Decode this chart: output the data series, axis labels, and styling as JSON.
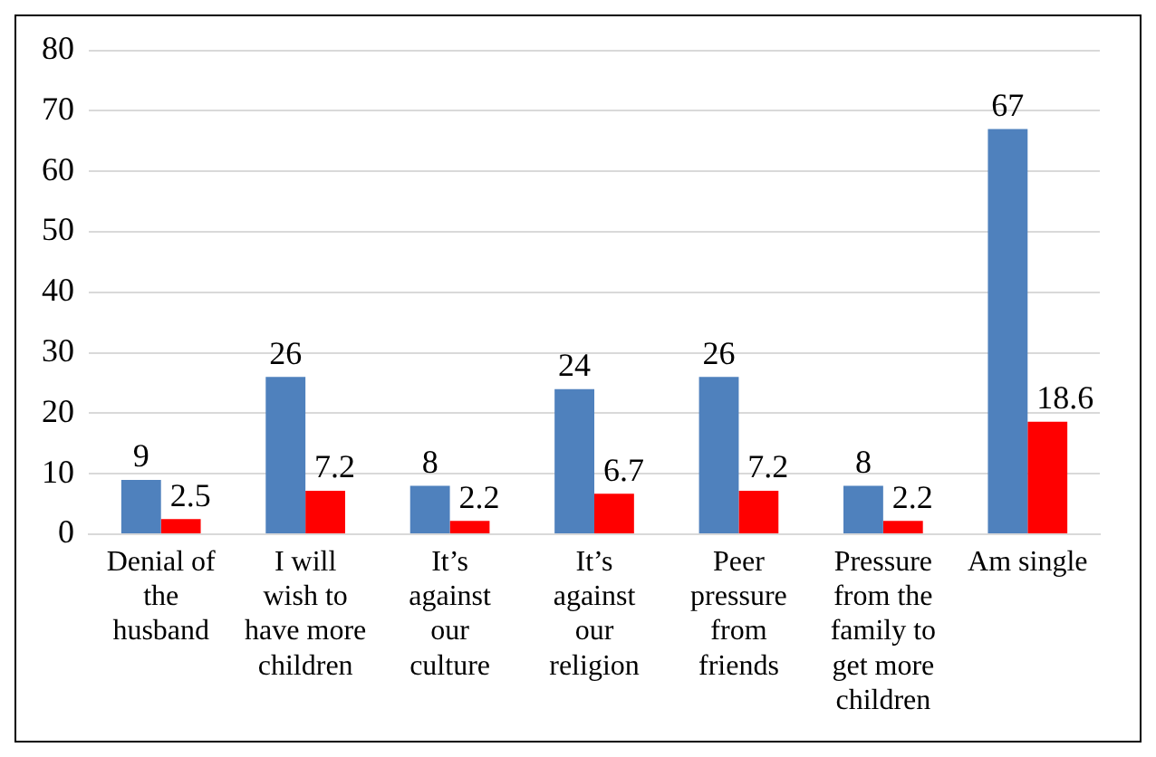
{
  "chart_data": {
    "type": "bar",
    "categories": [
      "Denial of the husband",
      "I will wish to have more children",
      "It’s against our culture",
      "It’s against our religion",
      "Peer pressure from friends",
      "Pressure from the family to get more children",
      "Am single"
    ],
    "series": [
      {
        "color": "#4f81bd",
        "values": [
          9,
          26,
          8,
          24,
          26,
          8,
          67
        ]
      },
      {
        "color": "#ff0000",
        "values": [
          2.5,
          7.2,
          2.2,
          6.7,
          7.2,
          2.2,
          18.6
        ]
      }
    ],
    "ylim": [
      0,
      80
    ],
    "yticks": [
      0,
      10,
      20,
      30,
      40,
      50,
      60,
      70,
      80
    ],
    "grid": "y",
    "legend": false,
    "data_labels": true
  }
}
